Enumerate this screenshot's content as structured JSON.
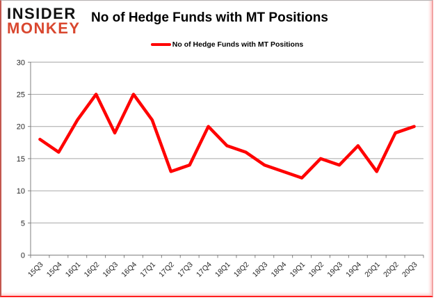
{
  "logo": {
    "line1": "INSIDER",
    "line2": "MONKEY"
  },
  "header": {
    "title": "No of Hedge Funds with MT Positions"
  },
  "legend": {
    "label": "No of Hedge Funds with MT Positions"
  },
  "chart_data": {
    "type": "line",
    "title": "No of Hedge Funds with MT Positions",
    "xlabel": "",
    "ylabel": "",
    "categories": [
      "15Q3",
      "15Q4",
      "16Q1",
      "16Q2",
      "16Q3",
      "16Q4",
      "17Q1",
      "17Q2",
      "17Q3",
      "17Q4",
      "18Q1",
      "18Q2",
      "18Q3",
      "18Q4",
      "19Q1",
      "19Q2",
      "19Q3",
      "19Q4",
      "20Q1",
      "20Q2",
      "20Q3"
    ],
    "series": [
      {
        "name": "No of Hedge Funds with MT Positions",
        "values": [
          18,
          16,
          21,
          25,
          19,
          25,
          21,
          13,
          14,
          20,
          17,
          16,
          14,
          13,
          12,
          15,
          14,
          17,
          13,
          19,
          20
        ]
      }
    ],
    "ylim": [
      0,
      30
    ],
    "yticks": [
      0,
      5,
      10,
      15,
      20,
      25,
      30
    ],
    "grid": true,
    "legend_position": "top",
    "colors": {
      "line": "#ff0000",
      "grid": "#a6a6a6",
      "axis": "#7f7f7f",
      "tick_text": "#262626",
      "logo_red": "#d9472f"
    }
  }
}
